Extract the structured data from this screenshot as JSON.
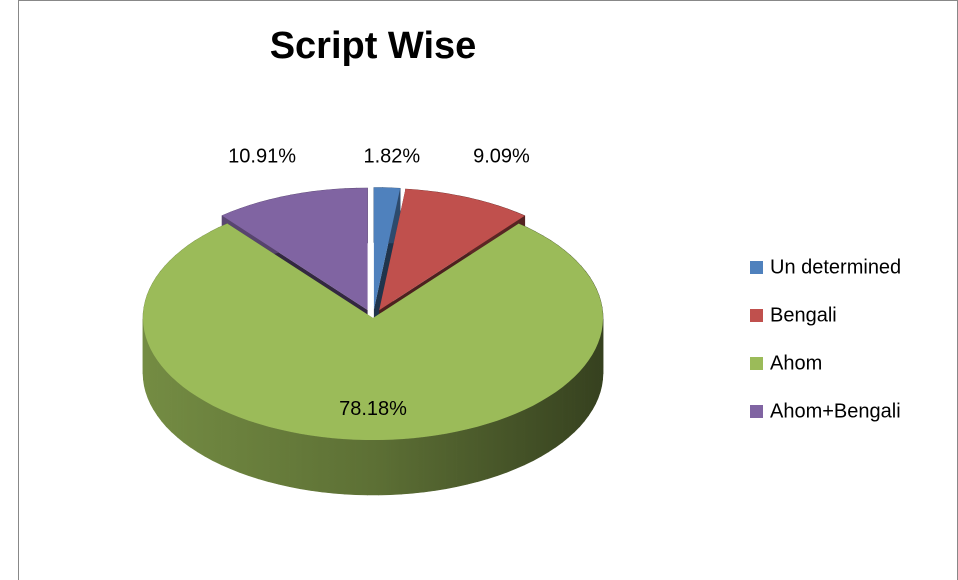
{
  "chart_data": {
    "type": "pie3d",
    "title": "Script Wise",
    "categories": [
      "Un determined",
      "Bengali",
      "Ahom",
      "Ahom+Bengali"
    ],
    "values": [
      1.82,
      9.09,
      78.18,
      10.91
    ],
    "value_labels": [
      "1.82%",
      "9.09%",
      "78.18%",
      "10.91%"
    ],
    "colors": [
      "#4f81bd",
      "#c0504d",
      "#9bbb59",
      "#8064a2"
    ],
    "legend": "right"
  }
}
